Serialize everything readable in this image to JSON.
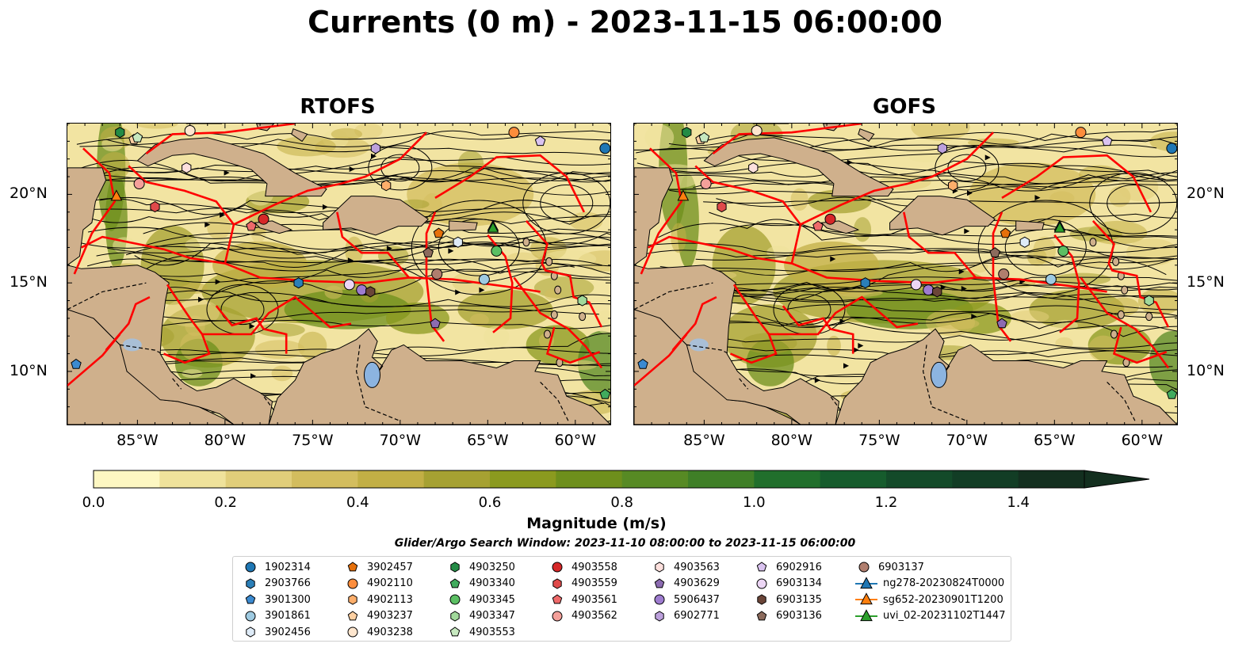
{
  "title": "Currents (0 m) - 2023-11-15 06:00:00",
  "panels": [
    {
      "title": "RTOFS"
    },
    {
      "title": "GOFS"
    }
  ],
  "lon_labels": [
    "85°W",
    "80°W",
    "75°W",
    "70°W",
    "65°W",
    "60°W"
  ],
  "lat_labels": [
    "20°N",
    "15°N",
    "10°N"
  ],
  "map_extent": {
    "lon": [
      -89,
      -58
    ],
    "lat": [
      7,
      24
    ]
  },
  "colorbar": {
    "label": "Magnitude (m/s)",
    "ticks": [
      "0.0",
      "0.2",
      "0.4",
      "0.6",
      "0.8",
      "1.0",
      "1.2",
      "1.4"
    ],
    "range": [
      0,
      1.5
    ],
    "extend": "max",
    "colors": [
      "#fdf7c2",
      "#efe29b",
      "#e1ce7a",
      "#d3bd5e",
      "#c2af45",
      "#a6a132",
      "#8b9a1f",
      "#6e8f1c",
      "#578a24",
      "#3f7f27",
      "#216f2c",
      "#165c2d",
      "#134a29",
      "#123d25",
      "#132f1f"
    ]
  },
  "search_window": "Glider/Argo Search Window: 2023-11-10 08:00:00 to 2023-11-15 06:00:00",
  "colors": {
    "land": "#cfb08c",
    "eez_boundary": "#ff0000",
    "streamline": "#000000",
    "lake": "#8cb4e0"
  },
  "legend": [
    {
      "label": "1902314",
      "marker": "circle",
      "color": "#1f77b4"
    },
    {
      "label": "2903766",
      "marker": "hexagon",
      "color": "#2b7fb8"
    },
    {
      "label": "3901300",
      "marker": "pentagon",
      "color": "#3b8ad0"
    },
    {
      "label": "3901861",
      "marker": "circle",
      "color": "#9ecae1"
    },
    {
      "label": "3902456",
      "marker": "hexagon",
      "color": "#deebf7"
    },
    {
      "label": "3902457",
      "marker": "pentagon",
      "color": "#e6700b"
    },
    {
      "label": "4902110",
      "marker": "circle",
      "color": "#fd8d3c"
    },
    {
      "label": "4902113",
      "marker": "hexagon",
      "color": "#fdae6b"
    },
    {
      "label": "4903237",
      "marker": "pentagon",
      "color": "#fdd0a2"
    },
    {
      "label": "4903238",
      "marker": "circle",
      "color": "#fee6ce"
    },
    {
      "label": "4903250",
      "marker": "hexagon",
      "color": "#238b45"
    },
    {
      "label": "4903340",
      "marker": "pentagon",
      "color": "#41ab5d"
    },
    {
      "label": "4903345",
      "marker": "circle",
      "color": "#5bbf63"
    },
    {
      "label": "4903347",
      "marker": "hexagon",
      "color": "#a1d99b"
    },
    {
      "label": "4903553",
      "marker": "pentagon",
      "color": "#c7e9c0"
    },
    {
      "label": "4903558",
      "marker": "circle",
      "color": "#d62728"
    },
    {
      "label": "4903559",
      "marker": "hexagon",
      "color": "#e04a4a"
    },
    {
      "label": "4903561",
      "marker": "pentagon",
      "color": "#ef6a6a"
    },
    {
      "label": "4903562",
      "marker": "circle",
      "color": "#f4a09a"
    },
    {
      "label": "4903563",
      "marker": "hexagon",
      "color": "#fde0dd"
    },
    {
      "label": "4903629",
      "marker": "pentagon",
      "color": "#8c6bb1"
    },
    {
      "label": "5906437",
      "marker": "circle",
      "color": "#9e7ccf"
    },
    {
      "label": "6902771",
      "marker": "hexagon",
      "color": "#bca0dc"
    },
    {
      "label": "6902916",
      "marker": "pentagon",
      "color": "#dac3f0"
    },
    {
      "label": "6903134",
      "marker": "circle",
      "color": "#ecd6f5"
    },
    {
      "label": "6903135",
      "marker": "hexagon",
      "color": "#6b4538"
    },
    {
      "label": "6903136",
      "marker": "pentagon",
      "color": "#8c6b5d"
    },
    {
      "label": "6903137",
      "marker": "circle",
      "color": "#b07e6e"
    },
    {
      "label": "ng278-20230824T0000",
      "marker": "triangle-line",
      "color": "#1f77b4"
    },
    {
      "label": "sg652-20230901T1200",
      "marker": "triangle-line",
      "color": "#ff7f0e"
    },
    {
      "label": "uvi_02-20231102T1447",
      "marker": "triangle-line",
      "color": "#2ca02c"
    }
  ],
  "float_positions": [
    {
      "label": "1902314",
      "lon": -58.3,
      "lat": 22.6
    },
    {
      "label": "2903766",
      "lon": -75.8,
      "lat": 15.0
    },
    {
      "label": "3901300",
      "lon": -88.5,
      "lat": 10.4
    },
    {
      "label": "3901861",
      "lon": -65.2,
      "lat": 15.2
    },
    {
      "label": "3902456",
      "lon": -66.7,
      "lat": 17.3
    },
    {
      "label": "3902457",
      "lon": -67.8,
      "lat": 17.8
    },
    {
      "label": "4902110",
      "lon": -63.5,
      "lat": 23.5
    },
    {
      "label": "4902113",
      "lon": -70.8,
      "lat": 20.5
    },
    {
      "label": "4903237",
      "lon": -85.2,
      "lat": 23.1
    },
    {
      "label": "4903238",
      "lon": -82.0,
      "lat": 23.6
    },
    {
      "label": "4903250",
      "lon": -86.0,
      "lat": 23.5
    },
    {
      "label": "4903340",
      "lon": -58.3,
      "lat": 8.7
    },
    {
      "label": "4903345",
      "lon": -64.5,
      "lat": 16.8
    },
    {
      "label": "4903347",
      "lon": -59.6,
      "lat": 14.0
    },
    {
      "label": "4903553",
      "lon": -85.0,
      "lat": 23.2
    },
    {
      "label": "4903558",
      "lon": -77.8,
      "lat": 18.6
    },
    {
      "label": "4903559",
      "lon": -84.0,
      "lat": 19.3
    },
    {
      "label": "4903561",
      "lon": -78.5,
      "lat": 18.2
    },
    {
      "label": "4903562",
      "lon": -84.9,
      "lat": 20.6
    },
    {
      "label": "4903563",
      "lon": -82.2,
      "lat": 21.5
    },
    {
      "label": "4903629",
      "lon": -68.0,
      "lat": 12.7
    },
    {
      "label": "5906437",
      "lon": -72.2,
      "lat": 14.6
    },
    {
      "label": "6902771",
      "lon": -71.4,
      "lat": 22.6
    },
    {
      "label": "6902916",
      "lon": -62.0,
      "lat": 23.0
    },
    {
      "label": "6903134",
      "lon": -72.9,
      "lat": 14.9
    },
    {
      "label": "6903135",
      "lon": -71.7,
      "lat": 14.5
    },
    {
      "label": "6903136",
      "lon": -68.4,
      "lat": 16.7
    },
    {
      "label": "6903137",
      "lon": -67.9,
      "lat": 15.5
    },
    {
      "label": "ng278-20230824T0000",
      "lon": -64.7,
      "lat": 18.2
    },
    {
      "label": "sg652-20230901T1200",
      "lon": -86.2,
      "lat": 19.9
    },
    {
      "label": "uvi_02-20231102T1447",
      "lon": -64.7,
      "lat": 18.1
    }
  ]
}
